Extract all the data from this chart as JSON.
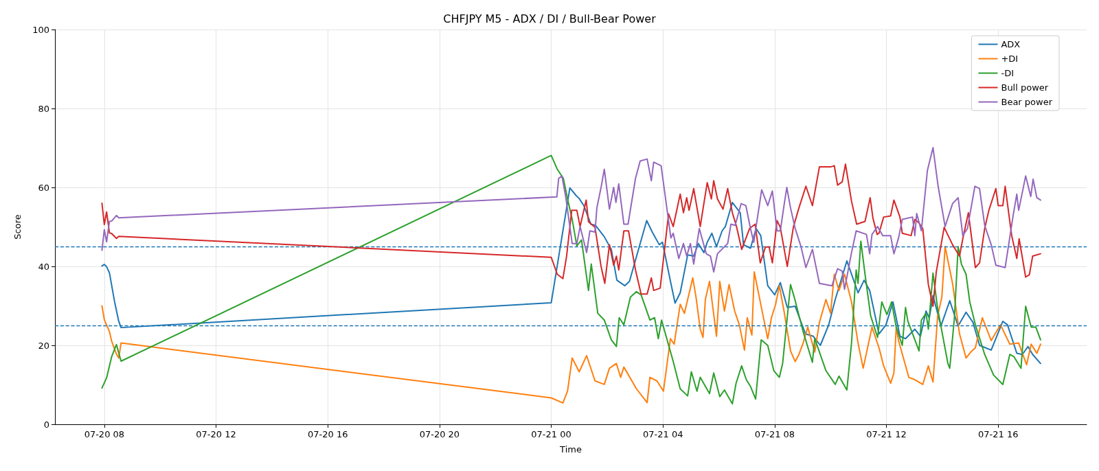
{
  "chart_data": {
    "type": "line",
    "title": "CHFJPY M5 - ADX / DI / Bull-Bear Power",
    "xlabel": "Time",
    "ylabel": "Score",
    "xlim": [
      "--07-20T06:14",
      "--07-21T19:10"
    ],
    "xticks": [
      {
        "value": "--07-20T08:00",
        "label": "07-20 08"
      },
      {
        "value": "--07-20T12:00",
        "label": "07-20 12"
      },
      {
        "value": "--07-20T16:00",
        "label": "07-20 16"
      },
      {
        "value": "--07-20T20:00",
        "label": "07-20 20"
      },
      {
        "value": "--07-21T00:00",
        "label": "07-21 00"
      },
      {
        "value": "--07-21T04:00",
        "label": "07-21 04"
      },
      {
        "value": "--07-21T08:00",
        "label": "07-21 08"
      },
      {
        "value": "--07-21T12:00",
        "label": "07-21 12"
      },
      {
        "value": "--07-21T16:00",
        "label": "07-21 16"
      }
    ],
    "ylim": [
      0,
      100
    ],
    "yticks": [
      0,
      20,
      40,
      60,
      80,
      100
    ],
    "grid": true,
    "legend": "top right",
    "marker": "none",
    "line_style": "solid",
    "ref_lines": [
      {
        "axis": "y",
        "value": 45,
        "color": "#1f77b4",
        "line_style": "dashed"
      },
      {
        "axis": "y",
        "value": 25,
        "color": "#1f77b4",
        "line_style": "dashed"
      }
    ],
    "series": [
      {
        "name": "ADX",
        "color": "#1f77b4",
        "x": [
          "--07-20T07:55",
          "--07-20T08:00",
          "--07-20T08:05",
          "--07-20T08:11",
          "--07-20T08:22",
          "--07-20T08:31",
          "--07-20T08:36",
          "--07-21T00:00",
          "--07-21T00:40",
          "--07-21T00:53",
          "--07-21T01:00",
          "--07-21T01:10",
          "--07-21T01:25",
          "--07-21T01:35",
          "--07-21T01:54",
          "--07-21T02:09",
          "--07-21T02:21",
          "--07-21T02:38",
          "--07-21T02:48",
          "--07-21T03:25",
          "--07-21T03:37",
          "--07-21T03:52",
          "--07-21T03:59",
          "--07-21T04:17",
          "--07-21T04:26",
          "--07-21T04:37",
          "--07-21T04:53",
          "--07-21T05:06",
          "--07-21T05:16",
          "--07-21T05:28",
          "--07-21T05:35",
          "--07-21T05:45",
          "--07-21T05:55",
          "--07-21T06:07",
          "--07-21T06:14",
          "--07-21T06:29",
          "--07-21T06:38",
          "--07-21T06:46",
          "--07-21T06:53",
          "--07-21T07:08",
          "--07-21T07:20",
          "--07-21T07:30",
          "--07-21T07:45",
          "--07-21T08:00",
          "--07-21T08:12",
          "--07-21T08:27",
          "--07-21T08:44",
          "--07-21T09:06",
          "--07-21T09:23",
          "--07-21T09:38",
          "--07-21T09:56",
          "--07-21T10:10",
          "--07-21T10:35",
          "--07-21T10:59",
          "--07-21T11:12",
          "--07-21T11:24",
          "--07-21T11:44",
          "--07-21T11:59",
          "--07-21T12:14",
          "--07-21T12:29",
          "--07-21T12:41",
          "--07-21T13:01",
          "--07-21T13:13",
          "--07-21T13:25",
          "--07-21T13:32",
          "--07-21T13:40",
          "--07-21T13:57",
          "--07-21T14:16",
          "--07-21T14:34",
          "--07-21T14:51",
          "--07-21T15:06",
          "--07-21T15:20",
          "--07-21T15:45",
          "--07-21T16:10",
          "--07-21T16:20",
          "--07-21T16:40",
          "--07-21T16:52",
          "--07-21T17:04",
          "--07-21T17:14",
          "--07-21T17:31"
        ],
        "values": [
          40.1,
          40.5,
          39.9,
          38.4,
          31.1,
          26.1,
          24.5,
          30.8,
          59.9,
          58,
          57.2,
          55.4,
          50.7,
          50.4,
          47.5,
          44.3,
          36.5,
          35.1,
          36.2,
          51.6,
          48.7,
          45.5,
          46.1,
          35.7,
          30.7,
          33.3,
          42.9,
          42.6,
          45.8,
          43.5,
          46.1,
          48.4,
          45,
          49,
          50.1,
          56.2,
          54.8,
          53.6,
          45.5,
          44.6,
          49.6,
          47.8,
          35.1,
          32.8,
          35.9,
          29.6,
          29.9,
          22.9,
          22.3,
          20,
          25.2,
          31.6,
          41.4,
          33.3,
          36.5,
          33.9,
          22.9,
          25.2,
          31,
          22.3,
          21.7,
          24.1,
          22.3,
          28.7,
          26.9,
          32.6,
          24.9,
          31.3,
          24.9,
          28.4,
          25.8,
          20,
          18.8,
          26.1,
          25.2,
          18,
          17.7,
          19.7,
          17.7,
          15.4
        ]
      },
      {
        "name": "+DI",
        "color": "#ff7f0e",
        "x": [
          "--07-20T07:55",
          "--07-20T08:00",
          "--07-20T08:11",
          "--07-20T08:16",
          "--07-20T08:25",
          "--07-20T08:31",
          "--07-20T08:36",
          "--07-21T00:00",
          "--07-21T00:25",
          "--07-21T00:35",
          "--07-21T00:45",
          "--07-21T01:00",
          "--07-21T01:16",
          "--07-21T01:34",
          "--07-21T01:54",
          "--07-21T02:05",
          "--07-21T02:20",
          "--07-21T02:29",
          "--07-21T02:36",
          "--07-21T03:03",
          "--07-21T03:26",
          "--07-21T03:32",
          "--07-21T03:47",
          "--07-21T04:01",
          "--07-21T04:16",
          "--07-21T04:24",
          "--07-21T04:37",
          "--07-21T04:46",
          "--07-21T05:04",
          "--07-21T05:11",
          "--07-21T05:20",
          "--07-21T05:26",
          "--07-21T05:31",
          "--07-21T05:40",
          "--07-21T05:55",
          "--07-21T06:02",
          "--07-21T06:12",
          "--07-21T06:22",
          "--07-21T06:34",
          "--07-21T06:44",
          "--07-21T06:55",
          "--07-21T07:01",
          "--07-21T07:11",
          "--07-21T07:16",
          "--07-21T07:35",
          "--07-21T07:45",
          "--07-21T07:53",
          "--07-21T08:02",
          "--07-21T08:10",
          "--07-21T08:20",
          "--07-21T08:34",
          "--07-21T08:44",
          "--07-21T08:52",
          "--07-21T09:01",
          "--07-21T09:11",
          "--07-21T09:26",
          "--07-21T09:36",
          "--07-21T09:50",
          "--07-21T10:00",
          "--07-21T10:08",
          "--07-21T10:18",
          "--07-21T10:30",
          "--07-21T10:45",
          "--07-21T10:59",
          "--07-21T11:10",
          "--07-21T11:29",
          "--07-21T11:44",
          "--07-21T11:54",
          "--07-21T12:09",
          "--07-21T12:16",
          "--07-21T12:21",
          "--07-21T12:26",
          "--07-21T12:48",
          "--07-21T13:01",
          "--07-21T13:18",
          "--07-21T13:30",
          "--07-21T13:40",
          "--07-21T13:50",
          "--07-21T13:59",
          "--07-21T14:06",
          "--07-21T14:22",
          "--07-21T14:37",
          "--07-21T14:51",
          "--07-21T15:01",
          "--07-21T15:11",
          "--07-21T15:26",
          "--07-21T15:45",
          "--07-21T16:05",
          "--07-21T16:25",
          "--07-21T16:44",
          "--07-21T17:01",
          "--07-21T17:11",
          "--07-21T17:23",
          "--07-21T17:31"
        ],
        "values": [
          30,
          26.5,
          23.5,
          21,
          18.1,
          16.8,
          20.6,
          6.7,
          5.4,
          8.4,
          16.8,
          13.3,
          17.4,
          11,
          10.1,
          14.2,
          15.4,
          11.9,
          14.5,
          9,
          5.5,
          11.9,
          11,
          8.4,
          21.7,
          20.3,
          30.4,
          28.1,
          37.1,
          32.2,
          24.1,
          22,
          31.6,
          36.2,
          22.3,
          36.2,
          28.7,
          35.4,
          28.7,
          25.2,
          18.8,
          27,
          22.6,
          38.6,
          27.5,
          21.7,
          27,
          30.4,
          35.1,
          28.7,
          18.6,
          15.9,
          17.7,
          20.6,
          24.6,
          18.3,
          25.8,
          31.6,
          28.1,
          38,
          33.9,
          38,
          31,
          20.6,
          14.2,
          24.6,
          19.4,
          14.8,
          10.4,
          13,
          24.6,
          21.2,
          11.9,
          11.3,
          10.1,
          14.8,
          10.7,
          27.5,
          32.2,
          45,
          35.7,
          22.9,
          16.8,
          18.3,
          19.4,
          27,
          21.2,
          25.2,
          20.3,
          20.6,
          15.1,
          20.3,
          18,
          20.3
        ]
      },
      {
        "name": "-DI",
        "color": "#2ca02c",
        "x": [
          "--07-20T07:55",
          "--07-20T08:05",
          "--07-20T08:16",
          "--07-20T08:26",
          "--07-20T08:36",
          "--07-21T00:00",
          "--07-21T00:13",
          "--07-21T00:26",
          "--07-21T00:35",
          "--07-21T00:45",
          "--07-21T00:55",
          "--07-21T01:05",
          "--07-21T01:20",
          "--07-21T01:26",
          "--07-21T01:40",
          "--07-21T01:54",
          "--07-21T02:09",
          "--07-21T02:20",
          "--07-21T02:26",
          "--07-21T02:36",
          "--07-21T02:50",
          "--07-21T03:03",
          "--07-21T03:13",
          "--07-21T03:32",
          "--07-21T03:42",
          "--07-21T03:50",
          "--07-21T03:57",
          "--07-21T04:22",
          "--07-21T04:37",
          "--07-21T04:53",
          "--07-21T05:01",
          "--07-21T05:13",
          "--07-21T05:20",
          "--07-21T05:40",
          "--07-21T05:49",
          "--07-21T06:02",
          "--07-21T06:12",
          "--07-21T06:29",
          "--07-21T06:37",
          "--07-21T06:49",
          "--07-21T06:59",
          "--07-21T07:08",
          "--07-21T07:19",
          "--07-21T07:31",
          "--07-21T07:45",
          "--07-21T07:58",
          "--07-21T08:10",
          "--07-21T08:17",
          "--07-21T08:34",
          "--07-21T08:42",
          "--07-21T09:01",
          "--07-21T09:21",
          "--07-21T09:26",
          "--07-21T09:50",
          "--07-21T10:10",
          "--07-21T10:18",
          "--07-21T10:35",
          "--07-21T10:45",
          "--07-21T10:55",
          "--07-21T10:59",
          "--07-21T11:05",
          "--07-21T11:14",
          "--07-21T11:26",
          "--07-21T11:41",
          "--07-21T11:50",
          "--07-21T12:01",
          "--07-21T12:11",
          "--07-21T12:21",
          "--07-21T12:34",
          "--07-21T12:41",
          "--07-21T12:46",
          "--07-21T13:10",
          "--07-21T13:15",
          "--07-21T13:25",
          "--07-21T13:30",
          "--07-21T13:40",
          "--07-21T13:50",
          "--07-21T14:12",
          "--07-21T14:16",
          "--07-21T14:26",
          "--07-21T14:34",
          "--07-21T14:41",
          "--07-21T14:51",
          "--07-21T14:59",
          "--07-21T15:11",
          "--07-21T15:31",
          "--07-21T15:50",
          "--07-21T16:10",
          "--07-21T16:25",
          "--07-21T16:34",
          "--07-21T16:49",
          "--07-21T16:59",
          "--07-21T17:11",
          "--07-21T17:21",
          "--07-21T17:31"
        ],
        "values": [
          9.2,
          11.8,
          17.2,
          20.2,
          16,
          68.1,
          64.6,
          62.3,
          57.1,
          51.9,
          45.2,
          46.7,
          33.9,
          40.6,
          28.1,
          26.4,
          21.4,
          19.7,
          27,
          25.2,
          32.2,
          33.6,
          32.8,
          26.4,
          27,
          21.7,
          26.4,
          15.9,
          9,
          7.2,
          13.3,
          8.4,
          11.9,
          7.8,
          13,
          7,
          8.7,
          5.2,
          10.4,
          14.8,
          11.3,
          9.6,
          6.4,
          21.4,
          20,
          13.6,
          11.9,
          15.4,
          35.4,
          32.2,
          23.5,
          15.7,
          21.7,
          13.6,
          10.1,
          12.2,
          8.7,
          20.6,
          39.1,
          35.7,
          46.4,
          38,
          27.5,
          22,
          31,
          27.8,
          31,
          24.6,
          20,
          29.6,
          26.1,
          18.6,
          26.4,
          28.1,
          24.1,
          38.3,
          29.3,
          15.4,
          14.2,
          27,
          45,
          40.6,
          38,
          31,
          25.2,
          17.7,
          12.5,
          10.1,
          17.7,
          17.1,
          14.2,
          29.9,
          24.6,
          24.6,
          21.4
        ]
      },
      {
        "name": "Bull power",
        "color": "#d62728",
        "x": [
          "--07-20T07:55",
          "--07-20T08:00",
          "--07-20T08:05",
          "--07-20T08:11",
          "--07-20T08:16",
          "--07-20T08:26",
          "--07-20T08:31",
          "--07-21T00:00",
          "--07-21T00:13",
          "--07-21T00:25",
          "--07-21T00:33",
          "--07-21T00:44",
          "--07-21T00:55",
          "--07-21T01:02",
          "--07-21T01:15",
          "--07-21T01:20",
          "--07-21T01:34",
          "--07-21T01:47",
          "--07-21T01:55",
          "--07-21T02:05",
          "--07-21T02:14",
          "--07-21T02:20",
          "--07-21T02:25",
          "--07-21T02:36",
          "--07-21T02:46",
          "--07-21T03:01",
          "--07-21T03:13",
          "--07-21T03:26",
          "--07-21T03:35",
          "--07-21T03:40",
          "--07-21T03:54",
          "--07-21T04:12",
          "--07-21T04:22",
          "--07-21T04:37",
          "--07-21T04:44",
          "--07-21T04:51",
          "--07-21T04:56",
          "--07-21T05:06",
          "--07-21T05:20",
          "--07-21T05:35",
          "--07-21T05:44",
          "--07-21T05:49",
          "--07-21T05:57",
          "--07-21T06:09",
          "--07-21T06:19",
          "--07-21T06:29",
          "--07-21T06:38",
          "--07-21T06:49",
          "--07-21T07:06",
          "--07-21T07:18",
          "--07-21T07:29",
          "--07-21T07:40",
          "--07-21T07:48",
          "--07-21T07:55",
          "--07-21T08:05",
          "--07-21T08:12",
          "--07-21T08:27",
          "--07-21T08:40",
          "--07-21T08:52",
          "--07-21T09:07",
          "--07-21T09:21",
          "--07-21T09:36",
          "--07-21T10:00",
          "--07-21T10:08",
          "--07-21T10:15",
          "--07-21T10:25",
          "--07-21T10:32",
          "--07-21T10:45",
          "--07-21T10:56",
          "--07-21T11:14",
          "--07-21T11:25",
          "--07-21T11:31",
          "--07-21T11:40",
          "--07-21T11:44",
          "--07-21T11:54",
          "--07-21T12:09",
          "--07-21T12:16",
          "--07-21T12:29",
          "--07-21T12:34",
          "--07-21T12:53",
          "--07-21T13:01",
          "--07-21T13:10",
          "--07-21T13:18",
          "--07-21T13:30",
          "--07-21T13:40",
          "--07-21T13:47",
          "--07-21T14:04",
          "--07-21T14:22",
          "--07-21T14:37",
          "--07-21T14:44",
          "--07-21T14:56",
          "--07-21T15:01",
          "--07-21T15:11",
          "--07-21T15:20",
          "--07-21T15:31",
          "--07-21T15:40",
          "--07-21T15:55",
          "--07-21T16:00",
          "--07-21T16:10",
          "--07-21T16:15",
          "--07-21T16:29",
          "--07-21T16:40",
          "--07-21T16:45",
          "--07-21T16:59",
          "--07-21T17:07",
          "--07-21T17:14",
          "--07-21T17:31"
        ],
        "values": [
          56,
          50.6,
          53.8,
          48.5,
          48.3,
          47.1,
          47.6,
          42.3,
          38,
          36.9,
          42.6,
          54.2,
          54.2,
          50.1,
          56.8,
          51.3,
          49.9,
          40,
          35.7,
          45.5,
          40.3,
          42.6,
          39.1,
          49,
          49,
          39.1,
          33,
          33,
          37.1,
          33.9,
          34.5,
          53.3,
          50.1,
          58.3,
          53.6,
          57.4,
          54.2,
          59.7,
          50.1,
          61.2,
          57.1,
          61.7,
          57.1,
          54.5,
          59.7,
          53.6,
          50.1,
          44.3,
          49.6,
          50.7,
          40.9,
          44.9,
          44.9,
          40.9,
          51.6,
          49.9,
          40,
          49.9,
          54.8,
          60.3,
          55.4,
          65.2,
          65.2,
          65.5,
          60.6,
          61.4,
          65.9,
          56.5,
          50.7,
          51.4,
          57.4,
          52.2,
          48.1,
          48.4,
          52.5,
          52.8,
          56.8,
          52.5,
          48.4,
          47.8,
          51.9,
          51,
          49.6,
          35.4,
          29.9,
          38.6,
          49.9,
          45.5,
          42.6,
          47,
          53.6,
          49,
          39.7,
          40.9,
          49.6,
          54.2,
          59.7,
          55.4,
          55.4,
          60.3,
          47.8,
          42,
          47,
          37.3,
          37.9,
          42.6,
          43.2
        ]
      },
      {
        "name": "Bear power",
        "color": "#9467bd",
        "x": [
          "--07-20T07:55",
          "--07-20T08:00",
          "--07-20T08:05",
          "--07-20T08:11",
          "--07-20T08:16",
          "--07-20T08:26",
          "--07-20T08:31",
          "--07-21T00:12",
          "--07-21T00:16",
          "--07-21T00:23",
          "--07-21T00:31",
          "--07-21T00:45",
          "--07-21T00:55",
          "--07-21T01:02",
          "--07-21T01:16",
          "--07-21T01:23",
          "--07-21T01:34",
          "--07-21T01:38",
          "--07-21T01:47",
          "--07-21T01:54",
          "--07-21T02:05",
          "--07-21T02:14",
          "--07-21T02:19",
          "--07-21T02:25",
          "--07-21T02:36",
          "--07-21T02:45",
          "--07-21T03:01",
          "--07-21T03:11",
          "--07-21T03:26",
          "--07-21T03:35",
          "--07-21T03:40",
          "--07-21T03:56",
          "--07-21T04:17",
          "--07-21T04:22",
          "--07-21T04:34",
          "--07-21T04:44",
          "--07-21T04:51",
          "--07-21T04:59",
          "--07-21T05:06",
          "--07-21T05:18",
          "--07-21T05:33",
          "--07-21T05:42",
          "--07-21T05:49",
          "--07-21T05:57",
          "--07-21T06:19",
          "--07-21T06:26",
          "--07-21T06:35",
          "--07-21T06:48",
          "--07-21T06:58",
          "--07-21T07:08",
          "--07-21T07:15",
          "--07-21T07:32",
          "--07-21T07:45",
          "--07-21T07:55",
          "--07-21T08:05",
          "--07-21T08:12",
          "--07-21T08:20",
          "--07-21T08:26",
          "--07-21T08:34",
          "--07-21T08:44",
          "--07-21T08:56",
          "--07-21T09:07",
          "--07-21T09:21",
          "--07-21T09:36",
          "--07-21T10:03",
          "--07-21T10:15",
          "--07-21T10:25",
          "--07-21T10:30",
          "--07-21T10:45",
          "--07-21T10:55",
          "--07-21T11:17",
          "--07-21T11:24",
          "--07-21T11:29",
          "--07-21T11:41",
          "--07-21T11:52",
          "--07-21T12:09",
          "--07-21T12:16",
          "--07-21T12:26",
          "--07-21T12:34",
          "--07-21T12:56",
          "--07-21T13:01",
          "--07-21T13:05",
          "--07-21T13:15",
          "--07-21T13:28",
          "--07-21T13:40",
          "--07-21T13:51",
          "--07-21T14:06",
          "--07-21T14:22",
          "--07-21T14:34",
          "--07-21T14:44",
          "--07-21T14:54",
          "--07-21T15:10",
          "--07-21T15:20",
          "--07-21T15:31",
          "--07-21T15:45",
          "--07-21T15:55",
          "--07-21T16:15",
          "--07-21T16:32",
          "--07-21T16:40",
          "--07-21T16:44",
          "--07-21T16:59",
          "--07-21T17:10",
          "--07-21T17:15",
          "--07-21T17:23",
          "--07-21T17:31"
        ],
        "values": [
          44.1,
          49.3,
          46.2,
          51.4,
          51.5,
          52.9,
          52.3,
          57.6,
          62.3,
          62.9,
          57.7,
          45.8,
          45.8,
          50.1,
          43.5,
          49,
          48.7,
          54.8,
          60,
          64.6,
          54.5,
          60,
          56.2,
          60.9,
          50.7,
          50.7,
          62.3,
          66.7,
          67.2,
          61.7,
          66.4,
          65.5,
          47.2,
          48.4,
          42,
          45.8,
          42.6,
          45.8,
          40.6,
          49.6,
          43.2,
          42.6,
          38.6,
          43.2,
          45.8,
          50.7,
          50.4,
          55.9,
          55.4,
          49.6,
          46.1,
          59.4,
          55.4,
          59.1,
          49,
          49,
          55.4,
          60,
          54.8,
          49.6,
          45.2,
          39.7,
          44.3,
          35.7,
          35.1,
          39.4,
          38.8,
          34.2,
          43.5,
          49,
          48.1,
          43.2,
          48.1,
          50.1,
          47.8,
          47.8,
          43.2,
          47.2,
          51.9,
          52.5,
          47.8,
          53.4,
          49,
          64.3,
          70.1,
          60.3,
          50.1,
          55.9,
          57.4,
          47.8,
          49.6,
          60.3,
          59.7,
          50.4,
          45.5,
          40.3,
          39.7,
          52.8,
          58.3,
          54.2,
          62.9,
          57.7,
          62.1,
          57.4,
          56.8
        ]
      }
    ]
  }
}
